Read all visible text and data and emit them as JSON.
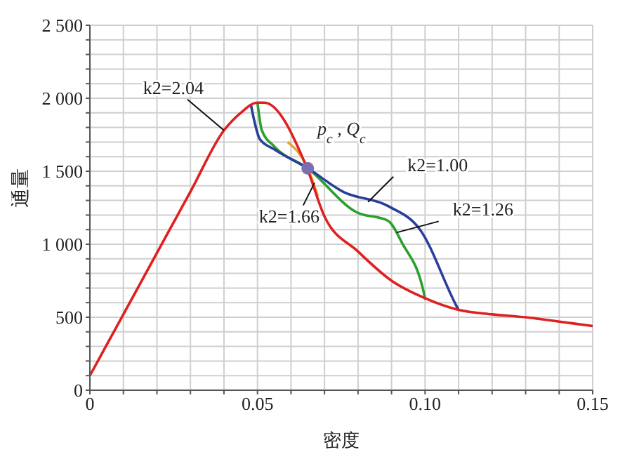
{
  "chart_data": {
    "type": "line",
    "xlabel": "密度",
    "ylabel": "通量",
    "xlim": [
      0,
      0.15
    ],
    "ylim": [
      0,
      2500
    ],
    "xticks": [
      0,
      {
        "value": 0.01,
        "label": null
      },
      {
        "value": 0.02,
        "label": null
      },
      {
        "value": 0.03,
        "label": null
      },
      {
        "value": 0.04,
        "label": null
      },
      0.05,
      {
        "value": 0.06,
        "label": null
      },
      {
        "value": 0.07,
        "label": null
      },
      {
        "value": 0.08,
        "label": null
      },
      {
        "value": 0.09,
        "label": null
      },
      {
        "value": 0.1,
        "label": "0.10"
      },
      {
        "value": 0.11,
        "label": null
      },
      {
        "value": 0.12,
        "label": null
      },
      {
        "value": 0.13,
        "label": null
      },
      {
        "value": 0.14,
        "label": null
      },
      0.15
    ],
    "yticks": [
      0,
      {
        "value": 100,
        "label": null
      },
      {
        "value": 200,
        "label": null
      },
      {
        "value": 300,
        "label": null
      },
      {
        "value": 400,
        "label": null
      },
      500,
      {
        "value": 600,
        "label": null
      },
      {
        "value": 700,
        "label": null
      },
      {
        "value": 800,
        "label": null
      },
      {
        "value": 900,
        "label": null
      },
      {
        "value": 1000,
        "label": "1 000"
      },
      {
        "value": 1100,
        "label": null
      },
      {
        "value": 1200,
        "label": null
      },
      {
        "value": 1300,
        "label": null
      },
      {
        "value": 1400,
        "label": null
      },
      {
        "value": 1500,
        "label": "1 500"
      },
      {
        "value": 1600,
        "label": null
      },
      {
        "value": 1700,
        "label": null
      },
      {
        "value": 1800,
        "label": null
      },
      {
        "value": 1900,
        "label": null
      },
      {
        "value": 2000,
        "label": "2 000"
      },
      {
        "value": 2100,
        "label": null
      },
      {
        "value": 2200,
        "label": null
      },
      {
        "value": 2300,
        "label": null
      },
      {
        "value": 2400,
        "label": null
      },
      {
        "value": 2500,
        "label": "2 500"
      }
    ],
    "grid": true,
    "series": [
      {
        "color": "#f0a030",
        "x": [
          0.059,
          0.065,
          0.068
        ],
        "values": [
          1700,
          1520,
          1330
        ]
      },
      {
        "color": "#2ca02c",
        "x": [
          0.05,
          0.0513,
          0.055,
          0.065,
          0.0795,
          0.089,
          0.0931,
          0.0999,
          0.1
        ],
        "values": [
          1970,
          1780,
          1670,
          1520,
          1220,
          1160,
          1010,
          640,
          620
        ]
      },
      {
        "color": "#2a3f9a",
        "x": [
          0.048,
          0.049,
          0.0507,
          0.055,
          0.065,
          0.0755,
          0.0891,
          0.0985,
          0.1093,
          0.11
        ],
        "values": [
          1960,
          1850,
          1720,
          1650,
          1520,
          1360,
          1260,
          1100,
          580,
          550
        ]
      },
      {
        "color": "#e02020",
        "x": [
          0,
          0.01,
          0.02,
          0.03,
          0.04,
          0.045,
          0.05,
          0.052,
          0.0648,
          0.07,
          0.08,
          0.09,
          0.1,
          0.11,
          0.12,
          0.13,
          0.14,
          0.15
        ],
        "values": [
          100,
          520,
          940,
          1360,
          1780,
          1900,
          1970,
          1970,
          1520,
          1190,
          950,
          750,
          630,
          550,
          520,
          500,
          470,
          440
        ]
      },
      {
        "type": "scatter",
        "color": "#7b6fb0",
        "x": [
          0.065
        ],
        "values": [
          1520
        ]
      }
    ],
    "annotations": [
      {
        "text": "k2=2.04",
        "x": 0.04,
        "y": 1780
      },
      {
        "text": "k2=1.66",
        "x": 0.067,
        "y": 1420
      },
      {
        "text": "k2=1.00",
        "x": 0.083,
        "y": 1290
      },
      {
        "text": "k2=1.26",
        "x": 0.0915,
        "y": 1080
      },
      {
        "text": "p$_{c}$ , Q$_{c}$",
        "x": 0.065,
        "y": 1520
      }
    ]
  }
}
